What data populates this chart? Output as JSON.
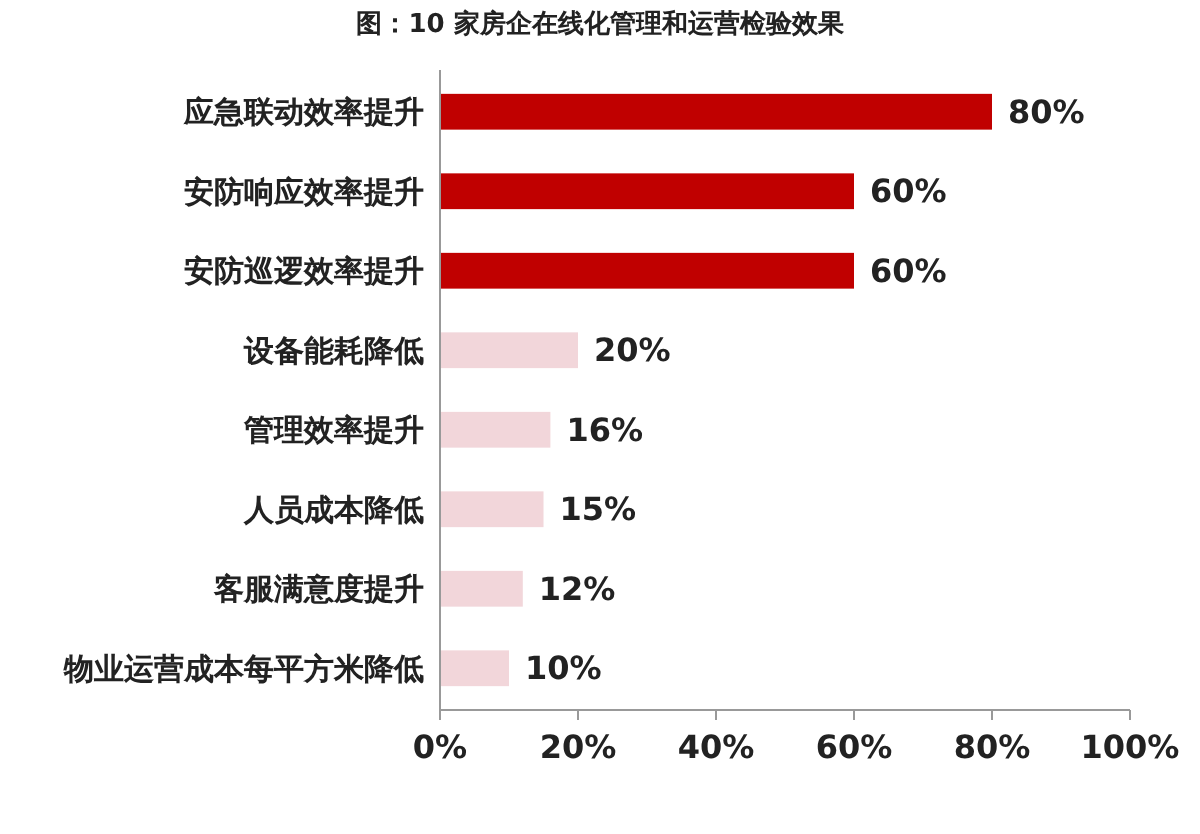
{
  "chart_data": {
    "type": "bar",
    "orientation": "horizontal",
    "title": "图：10 家房企在线化管理和运营检验效果",
    "categories": [
      "应急联动效率提升",
      "安防响应效率提升",
      "安防巡逻效率提升",
      "设备能耗降低",
      "管理效率提升",
      "人员成本降低",
      "客服满意度提升",
      "物业运营成本每平方米降低"
    ],
    "values": [
      80,
      60,
      60,
      20,
      16,
      15,
      12,
      10
    ],
    "colors": [
      "#c00000",
      "#c00000",
      "#c00000",
      "#f2d6da",
      "#f2d6da",
      "#f2d6da",
      "#f2d6da",
      "#f2d6da"
    ],
    "value_labels": [
      "80%",
      "60%",
      "60%",
      "20%",
      "16%",
      "15%",
      "12%",
      "10%"
    ],
    "xlim": [
      0,
      100
    ],
    "xticks": [
      {
        "value": 0,
        "label": "0%"
      },
      {
        "value": 20,
        "label": "20%"
      },
      {
        "value": 40,
        "label": "40%"
      },
      {
        "value": 60,
        "label": "60%"
      },
      {
        "value": 80,
        "label": "80%"
      },
      {
        "value": 100,
        "label": "100%"
      }
    ],
    "grid": false
  }
}
